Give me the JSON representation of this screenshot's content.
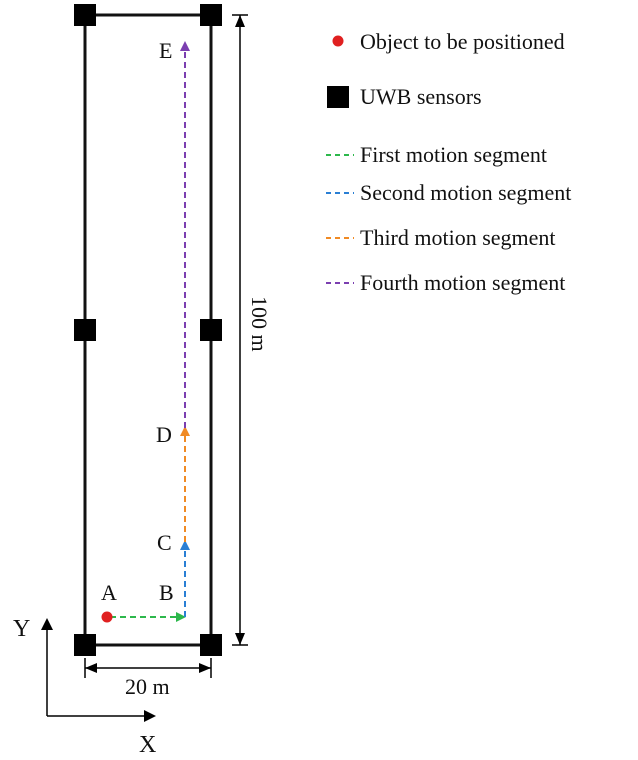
{
  "points": {
    "A": "A",
    "B": "B",
    "C": "C",
    "D": "D",
    "E": "E"
  },
  "dimensions": {
    "width": "20 m",
    "height": "100 m"
  },
  "axes": {
    "x": "X",
    "y": "Y"
  },
  "legend": {
    "object": "Object to be positioned",
    "sensors": "UWB sensors",
    "seg1": "First motion segment",
    "seg2": "Second motion segment",
    "seg3": "Third motion segment",
    "seg4": "Fourth motion segment"
  },
  "colors": {
    "object": "#e02020",
    "sensor": "#000000",
    "seg1": "#2db84c",
    "seg2": "#2a7fd4",
    "seg3": "#f08a24",
    "seg4": "#7b3fb0"
  }
}
